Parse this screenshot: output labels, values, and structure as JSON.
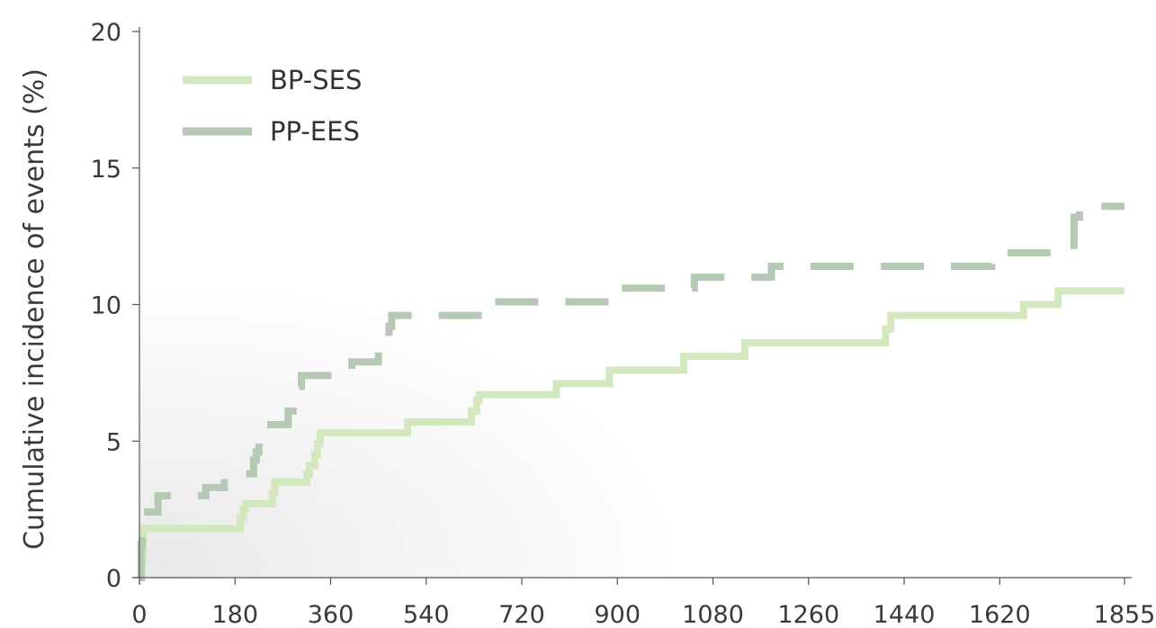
{
  "chart_data": {
    "type": "line",
    "title": "",
    "xlabel": "",
    "ylabel": "Cumulative incidence of events (%)",
    "xlim": [
      0,
      1855
    ],
    "ylim": [
      0,
      20
    ],
    "x_ticks": [
      0,
      180,
      360,
      540,
      720,
      900,
      1080,
      1260,
      1440,
      1620,
      1855
    ],
    "y_ticks": [
      0,
      5,
      10,
      15,
      20
    ],
    "grid": false,
    "legend_position": "top-left",
    "step": true,
    "series": [
      {
        "name": "BP-SES",
        "color": "#d4e8c0",
        "dash": "solid",
        "points": [
          [
            0,
            0
          ],
          [
            5,
            0.6
          ],
          [
            7,
            1.8
          ],
          [
            185,
            1.8
          ],
          [
            190,
            2.2
          ],
          [
            195,
            2.5
          ],
          [
            200,
            2.7
          ],
          [
            245,
            2.7
          ],
          [
            250,
            3.1
          ],
          [
            255,
            3.5
          ],
          [
            310,
            3.5
          ],
          [
            315,
            3.8
          ],
          [
            320,
            4.1
          ],
          [
            330,
            4.5
          ],
          [
            335,
            4.9
          ],
          [
            340,
            5.3
          ],
          [
            500,
            5.3
          ],
          [
            505,
            5.7
          ],
          [
            620,
            5.7
          ],
          [
            625,
            6.1
          ],
          [
            635,
            6.5
          ],
          [
            640,
            6.7
          ],
          [
            775,
            6.7
          ],
          [
            785,
            7.1
          ],
          [
            880,
            7.1
          ],
          [
            885,
            7.6
          ],
          [
            1020,
            7.6
          ],
          [
            1025,
            8.1
          ],
          [
            1135,
            8.1
          ],
          [
            1140,
            8.6
          ],
          [
            1400,
            8.6
          ],
          [
            1405,
            9.1
          ],
          [
            1415,
            9.6
          ],
          [
            1660,
            9.6
          ],
          [
            1665,
            10.0
          ],
          [
            1725,
            10.0
          ],
          [
            1730,
            10.5
          ],
          [
            1855,
            10.5
          ]
        ]
      },
      {
        "name": "PP-EES",
        "color": "#b5c9b5",
        "dash": "dashed",
        "points": [
          [
            0,
            0
          ],
          [
            3,
            1.2
          ],
          [
            5,
            2.4
          ],
          [
            30,
            2.4
          ],
          [
            35,
            3.0
          ],
          [
            120,
            3.0
          ],
          [
            125,
            3.3
          ],
          [
            160,
            3.8
          ],
          [
            210,
            3.8
          ],
          [
            215,
            4.3
          ],
          [
            220,
            4.6
          ],
          [
            225,
            5.6
          ],
          [
            275,
            5.6
          ],
          [
            280,
            6.1
          ],
          [
            295,
            6.1
          ],
          [
            300,
            7.0
          ],
          [
            305,
            7.4
          ],
          [
            390,
            7.4
          ],
          [
            400,
            7.9
          ],
          [
            445,
            7.9
          ],
          [
            450,
            8.3
          ],
          [
            460,
            8.5
          ],
          [
            470,
            9.2
          ],
          [
            475,
            9.6
          ],
          [
            640,
            9.6
          ],
          [
            645,
            10.1
          ],
          [
            895,
            10.1
          ],
          [
            900,
            10.6
          ],
          [
            1040,
            10.6
          ],
          [
            1045,
            11.0
          ],
          [
            1185,
            11.0
          ],
          [
            1190,
            11.4
          ],
          [
            1600,
            11.4
          ],
          [
            1605,
            11.9
          ],
          [
            1750,
            11.9
          ],
          [
            1760,
            13.2
          ],
          [
            1770,
            13.6
          ],
          [
            1855,
            13.6
          ]
        ]
      }
    ]
  }
}
